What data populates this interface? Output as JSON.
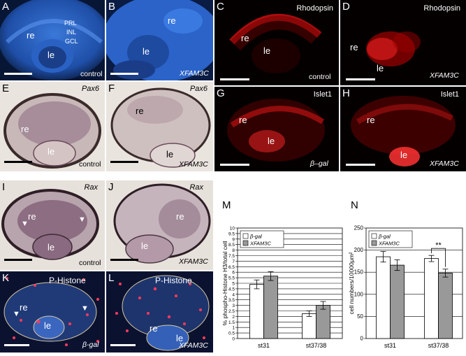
{
  "panels": {
    "A": {
      "letter": "A",
      "condition": "control",
      "re": "re",
      "le": "le",
      "layers": [
        "PRL",
        "INL",
        "GCL"
      ]
    },
    "B": {
      "letter": "B",
      "condition": "XFAM3C",
      "re": "re",
      "le": "le"
    },
    "C": {
      "letter": "C",
      "stain": "Rhodopsin",
      "condition": "control",
      "re": "re",
      "le": "le"
    },
    "D": {
      "letter": "D",
      "stain": "Rhodopsin",
      "condition": "XFAM3C",
      "re": "re",
      "le": "le"
    },
    "E": {
      "letter": "E",
      "stain": "Pax6",
      "condition": "control",
      "re": "re",
      "le": "le"
    },
    "F": {
      "letter": "F",
      "stain": "Pax6",
      "condition": "XFAM3C",
      "re": "re",
      "le": "le"
    },
    "G": {
      "letter": "G",
      "stain": "Islet1",
      "condition": "β–gal",
      "re": "re",
      "le": "le"
    },
    "H": {
      "letter": "H",
      "stain": "Islet1",
      "condition": "XFAM3C",
      "re": "re",
      "le": "le"
    },
    "I": {
      "letter": "I",
      "stain": "Rax",
      "condition": "control",
      "re": "re",
      "le": "le"
    },
    "J": {
      "letter": "J",
      "stain": "Rax",
      "condition": "XFAM3C",
      "re": "re",
      "le": "le"
    },
    "K": {
      "letter": "K",
      "stain": "P-Histone",
      "condition": "β-gal",
      "re": "re",
      "le": "le"
    },
    "L": {
      "letter": "L",
      "stain": "P-Histone",
      "condition": "XFAM3C",
      "re": "re",
      "le": "le"
    }
  },
  "chart_data": [
    {
      "type": "bar",
      "letter": "M",
      "ylabel": "% phospho-Histone H3/total cell",
      "categories": [
        "st31",
        "st37/38"
      ],
      "ylim": [
        0,
        10
      ],
      "yticks": [
        0,
        0.5,
        1,
        1.5,
        2,
        2.5,
        3,
        3.5,
        4,
        4.5,
        5,
        5.5,
        6,
        6.5,
        7,
        7.5,
        8,
        8.5,
        9,
        9.5,
        10
      ],
      "yticklabels": [
        "0",
        "0.5",
        "1",
        "1.5",
        "2",
        "2.5",
        "3",
        "3.5",
        "4",
        "4.5",
        "5",
        "5.5",
        "6",
        "6.5",
        "7",
        "7.5",
        "8",
        "8.5",
        "9",
        "9.5",
        "10"
      ],
      "grid": true,
      "legend": "top-left",
      "series": [
        {
          "name": "β-gal",
          "color": "#ffffff",
          "values": [
            4.9,
            2.25
          ],
          "errors": [
            0.4,
            0.25
          ]
        },
        {
          "name": "XFAM3C",
          "color": "#999999",
          "values": [
            5.65,
            3.0
          ],
          "errors": [
            0.4,
            0.35
          ]
        }
      ]
    },
    {
      "type": "bar",
      "letter": "N",
      "ylabel": "cell numbers/10000μm²",
      "categories": [
        "st31",
        "st37/38"
      ],
      "ylim": [
        0,
        250
      ],
      "yticks": [
        0,
        50,
        100,
        150,
        200,
        250
      ],
      "yticklabels": [
        "0",
        "50",
        "100",
        "150",
        "200",
        "250"
      ],
      "grid": true,
      "legend": "top-left",
      "annotation": "**",
      "series": [
        {
          "name": "β-gal",
          "color": "#ffffff",
          "values": [
            185,
            181
          ],
          "errors": [
            12,
            7
          ]
        },
        {
          "name": "XFAM3C",
          "color": "#999999",
          "values": [
            166,
            148
          ],
          "errors": [
            12,
            9
          ]
        }
      ]
    }
  ]
}
